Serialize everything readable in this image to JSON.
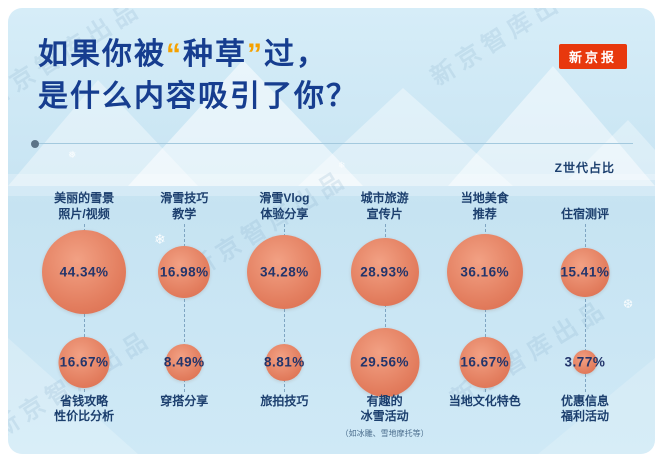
{
  "title": {
    "part1": "如果你被",
    "quote_open": "“",
    "highlight": "种草",
    "quote_close": "”",
    "part2": "过，",
    "line2": "是什么内容吸引了你？"
  },
  "badge": "新京报",
  "legend": "Z世代占比",
  "watermark": "新京智库出品",
  "colors": {
    "background": "#cde7f5",
    "title": "#163d8f",
    "quote_highlight": "#f5a100",
    "badge_bg": "#e8380d",
    "bubble": "#e07a5c",
    "value_text": "#23356b",
    "label_text": "#1c3f6e"
  },
  "columns": [
    {
      "top_label": [
        "美丽的雪景",
        "照片/视频"
      ],
      "top_value": 44.34,
      "top_value_label": "44.34%",
      "bottom_value": 16.67,
      "bottom_value_label": "16.67%",
      "bottom_label": [
        "省钱攻略",
        "性价比分析"
      ],
      "note": ""
    },
    {
      "top_label": [
        "滑雪技巧",
        "教学"
      ],
      "top_value": 16.98,
      "top_value_label": "16.98%",
      "bottom_value": 8.49,
      "bottom_value_label": "8.49%",
      "bottom_label": [
        "穿搭分享"
      ],
      "note": ""
    },
    {
      "top_label": [
        "滑雪Vlog",
        "体验分享"
      ],
      "top_value": 34.28,
      "top_value_label": "34.28%",
      "bottom_value": 8.81,
      "bottom_value_label": "8.81%",
      "bottom_label": [
        "旅拍技巧"
      ],
      "note": ""
    },
    {
      "top_label": [
        "城市旅游",
        "宣传片"
      ],
      "top_value": 28.93,
      "top_value_label": "28.93%",
      "bottom_value": 29.56,
      "bottom_value_label": "29.56%",
      "bottom_label": [
        "有趣的",
        "冰雪活动"
      ],
      "note": "（如冰雕、雪地摩托等）"
    },
    {
      "top_label": [
        "当地美食",
        "推荐"
      ],
      "top_value": 36.16,
      "top_value_label": "36.16%",
      "bottom_value": 16.67,
      "bottom_value_label": "16.67%",
      "bottom_label": [
        "当地文化特色"
      ],
      "note": ""
    },
    {
      "top_label": [
        "住宿测评"
      ],
      "top_value": 15.41,
      "top_value_label": "15.41%",
      "bottom_value": 3.77,
      "bottom_value_label": "3.77%",
      "bottom_label": [
        "优惠信息",
        "福利活动"
      ],
      "note": ""
    }
  ],
  "chart_data": {
    "type": "bubble",
    "title": "如果你被“种草”过，是什么内容吸引了你？",
    "legend": "Z世代占比",
    "unit": "%",
    "points": [
      {
        "label": "美丽的雪景照片/视频",
        "value": 44.34
      },
      {
        "label": "滑雪技巧教学",
        "value": 16.98
      },
      {
        "label": "滑雪Vlog体验分享",
        "value": 34.28
      },
      {
        "label": "城市旅游宣传片",
        "value": 28.93
      },
      {
        "label": "当地美食推荐",
        "value": 36.16
      },
      {
        "label": "住宿测评",
        "value": 15.41
      },
      {
        "label": "省钱攻略性价比分析",
        "value": 16.67
      },
      {
        "label": "穿搭分享",
        "value": 8.49
      },
      {
        "label": "旅拍技巧",
        "value": 8.81
      },
      {
        "label": "有趣的冰雪活动（如冰雕、雪地摩托等）",
        "value": 29.56
      },
      {
        "label": "当地文化特色",
        "value": 16.67
      },
      {
        "label": "优惠信息福利活动",
        "value": 3.77
      }
    ]
  }
}
